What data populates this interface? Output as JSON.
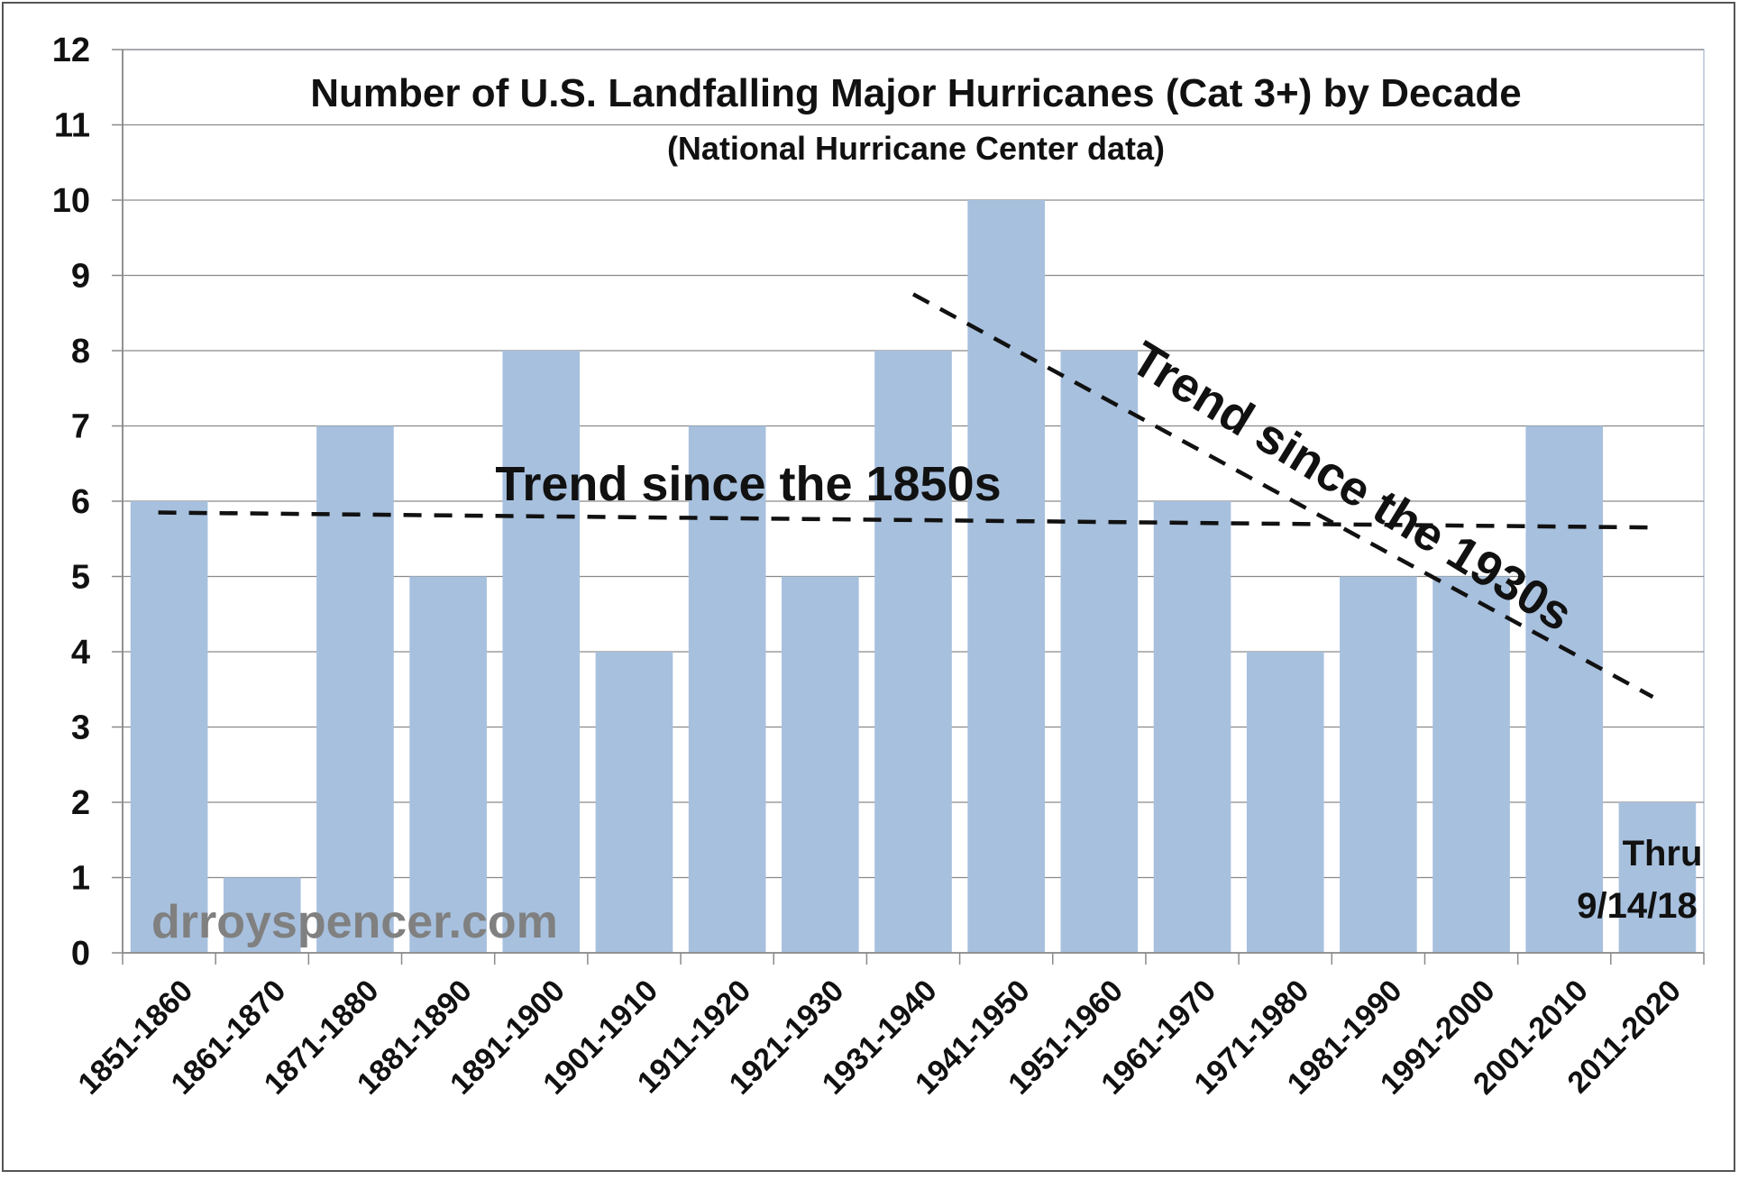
{
  "chart_data": {
    "type": "bar",
    "title": "Number of U.S. Landfalling Major Hurricanes (Cat 3+) by Decade",
    "subtitle": "(National Hurricane Center data)",
    "categories": [
      "1851-1860",
      "1861-1870",
      "1871-1880",
      "1881-1890",
      "1891-1900",
      "1901-1910",
      "1911-1920",
      "1921-1930",
      "1931-1940",
      "1941-1950",
      "1951-1960",
      "1961-1970",
      "1971-1980",
      "1981-1990",
      "1991-2000",
      "2001-2010",
      "2011-2020"
    ],
    "values": [
      6,
      1,
      7,
      5,
      8,
      4,
      7,
      5,
      8,
      10,
      8,
      6,
      4,
      5,
      5,
      7,
      2
    ],
    "ylim": [
      0,
      12
    ],
    "yticks": [
      0,
      1,
      2,
      3,
      4,
      5,
      6,
      7,
      8,
      9,
      10,
      11,
      12
    ],
    "grid": true,
    "bar_color": "#a7c0de",
    "trend_lines": [
      {
        "label": "Trend since the 1850s",
        "start": {
          "x": "1851-1860",
          "y": 5.85
        },
        "end": {
          "x": "2011-2020",
          "y": 5.65
        }
      },
      {
        "label": "Trend since the 1930s",
        "start": {
          "x": "1931-1940",
          "y": 8.75
        },
        "end": {
          "x": "2011-2020",
          "y": 3.4
        }
      }
    ],
    "annotations": {
      "watermark": "drroyspencer.com",
      "note_line1": "Thru",
      "note_line2": "9/14/18"
    }
  }
}
